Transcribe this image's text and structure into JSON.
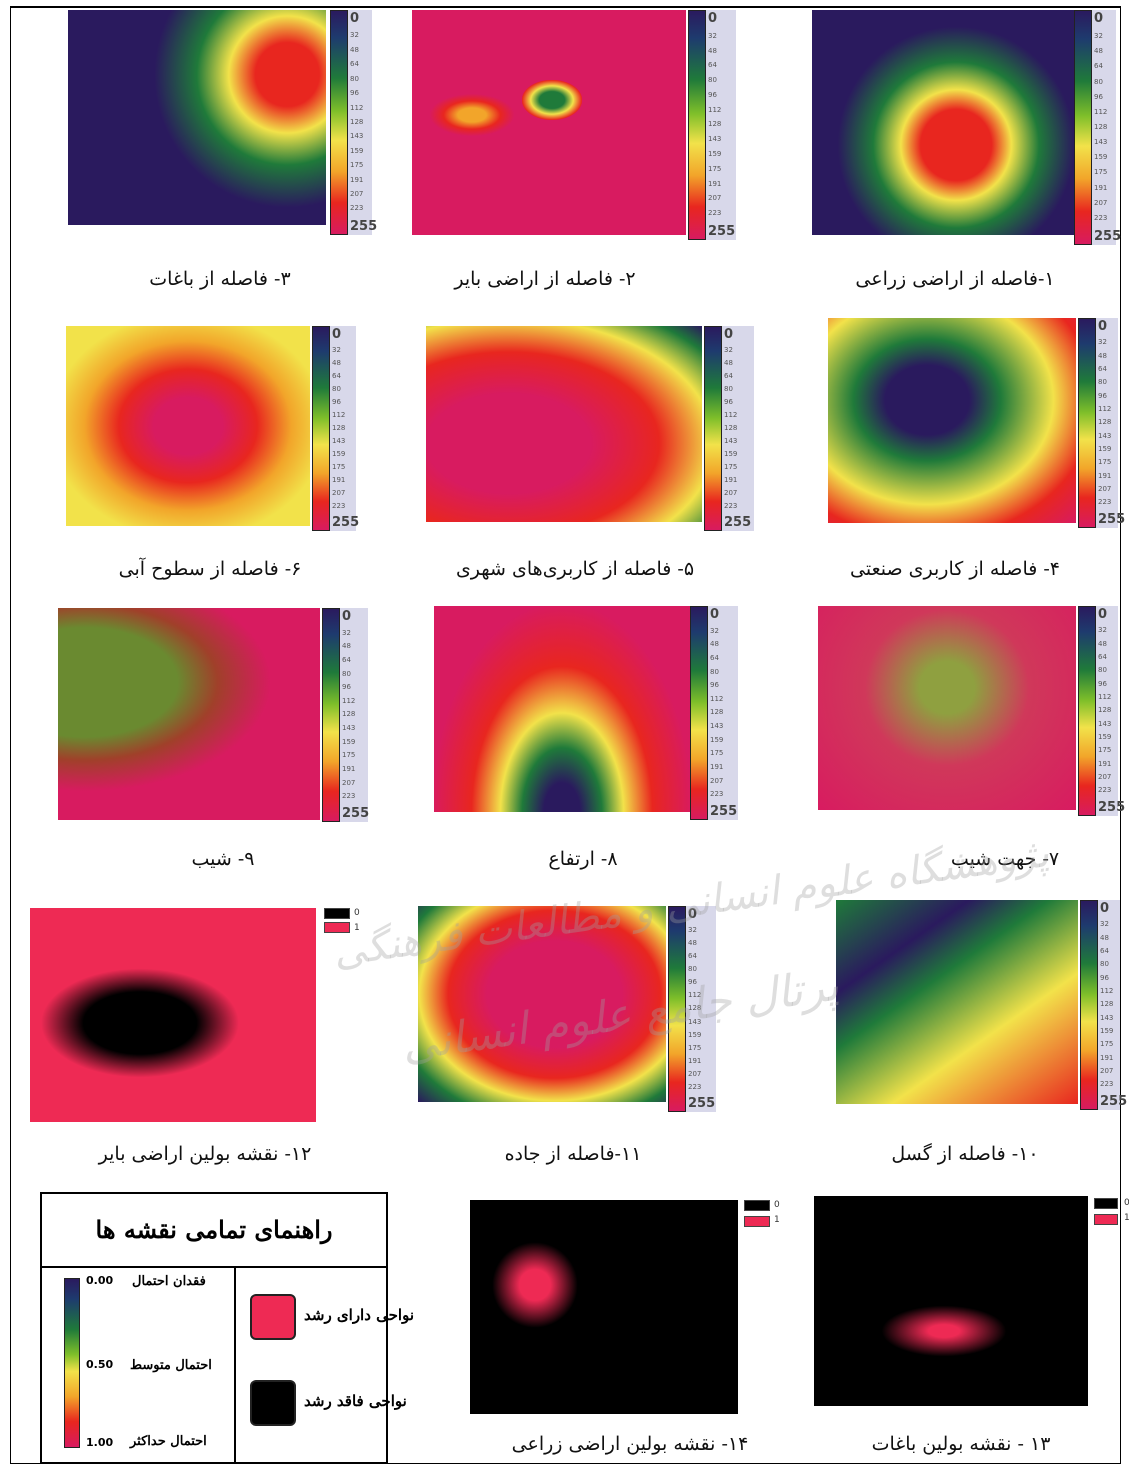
{
  "colors": {
    "dark_purple": "#2a1a5e",
    "green": "#1f7a3a",
    "yellow": "#f2e24a",
    "red": "#e8261f",
    "magenta": "#d81b60",
    "crimson": "#ee2a54",
    "black": "#000000"
  },
  "scale_ticks": [
    "0",
    "32",
    "48",
    "64",
    "80",
    "96",
    "112",
    "128",
    "143",
    "159",
    "175",
    "191",
    "207",
    "223",
    "255"
  ],
  "boolean_ticks": [
    "0",
    "1"
  ],
  "captions": {
    "p1": "۱-فاصله از اراضی زراعی",
    "p2": "۲- فاصله از اراضی بایر",
    "p3": "۳- فاصله از باغات",
    "p4": "۴- فاصله از کاربری صنعتی",
    "p5": "۵- فاصله از کاربری‌های شهری",
    "p6": "۶- فاصله از سطوح آبی",
    "p7": "۷- جهت شیب",
    "p8": "۸- ارتفاع",
    "p9": "۹- شیب",
    "p10": "۱۰- فاصله از گسل",
    "p11": "۱۱-فاصله از جاده",
    "p12": "۱۲- نقشه بولین اراضی بایر",
    "p13": "۱۳ - نقشه بولین باغات",
    "p14": "۱۴- نقشه بولین اراضی زراعی"
  },
  "legend": {
    "title": "راهنمای تمامی نقشه ها",
    "growth": "نواحی دارای رشد",
    "no_growth": "نواحی فاقد رشد",
    "prob_none": "فقدان احتمال",
    "prob_mid": "احتمال متوسط",
    "prob_max": "احتمال حداکثر",
    "v0": "0.00",
    "v50": "0.50",
    "v100": "1.00"
  },
  "watermark": {
    "line1": "پژوهشگاه علوم انسانی و مطالعات فرهنگی",
    "line2": "پرتال جامع علوم انسانی"
  }
}
